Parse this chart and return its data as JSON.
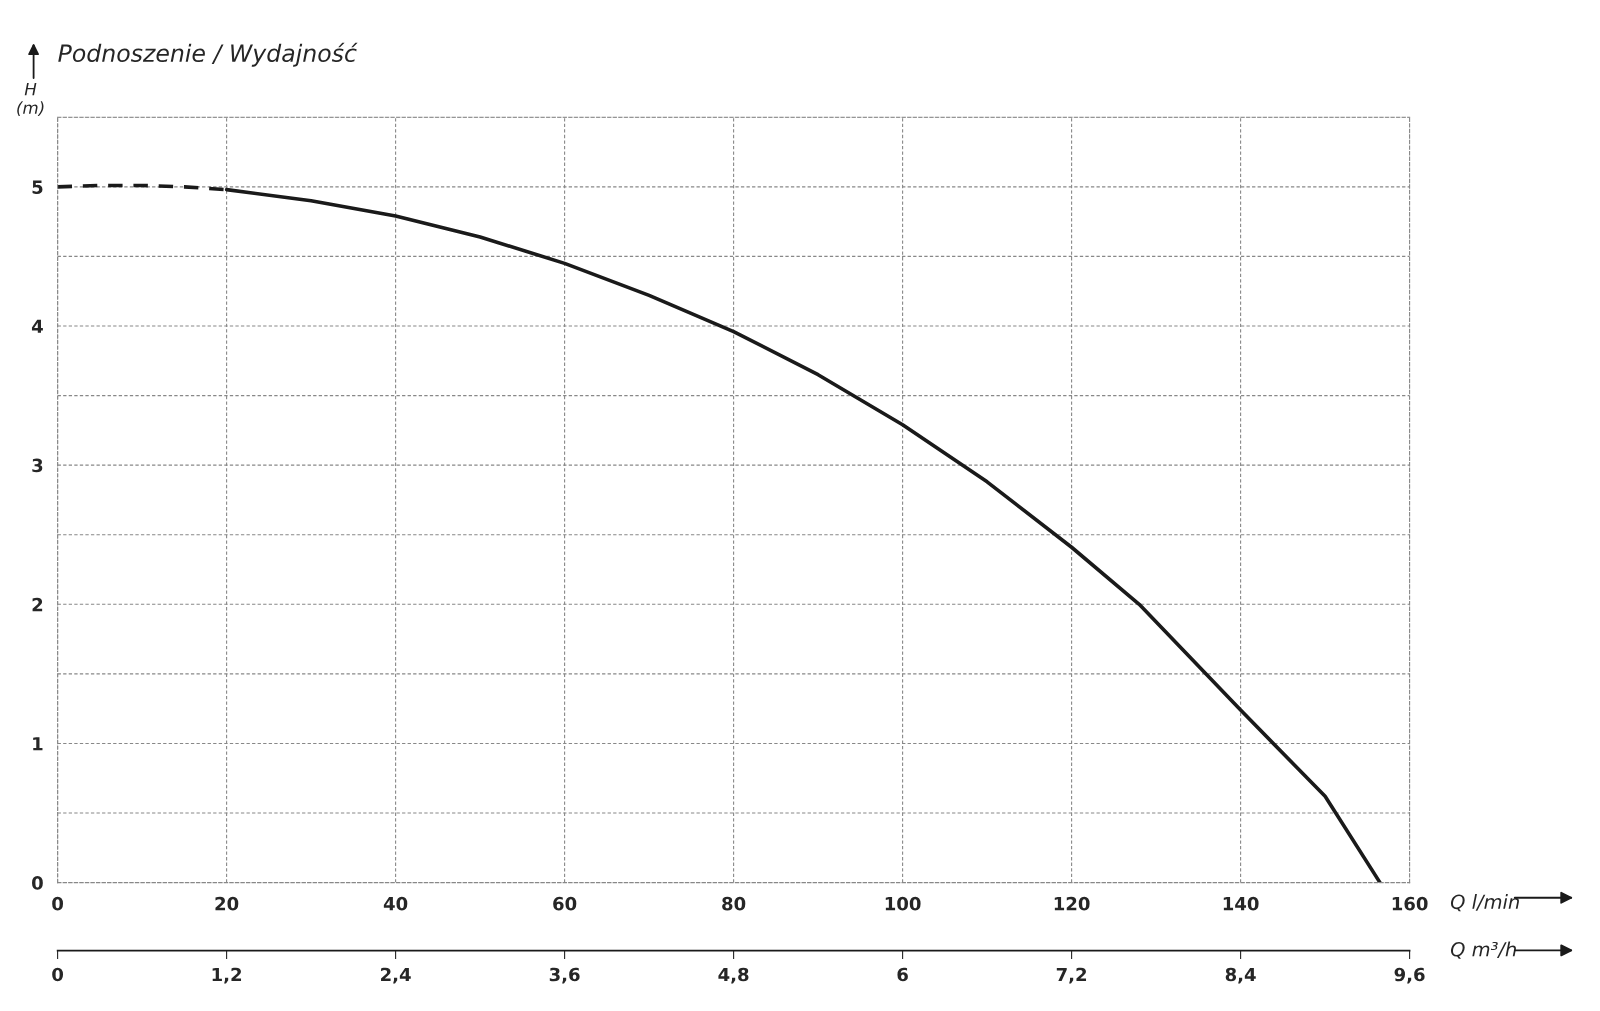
{
  "chart_data": {
    "type": "line",
    "title": "Podnoszenie / Wydajność",
    "ylabel": "H\n(m)",
    "xlabel": "Q l/min",
    "x2label": "Q m³/h",
    "series": [
      {
        "color": "#1a1a1a",
        "line_style": "dashed",
        "x": [
          0,
          5,
          10,
          15,
          20
        ],
        "values": [
          5.0,
          5.01,
          5.01,
          5.0,
          4.98
        ]
      },
      {
        "color": "#1a1a1a",
        "line_style": "solid",
        "x": [
          20,
          30,
          40,
          50,
          60,
          70,
          80,
          90,
          100,
          110,
          120,
          128,
          140,
          150,
          156.5
        ],
        "values": [
          4.98,
          4.9,
          4.79,
          4.64,
          4.45,
          4.22,
          3.96,
          3.65,
          3.29,
          2.88,
          2.41,
          2.0,
          1.24,
          0.62,
          0
        ]
      }
    ],
    "xlim": [
      0,
      160
    ],
    "xticks": [
      0,
      20,
      40,
      60,
      80,
      100,
      120,
      140,
      160
    ],
    "ylim": [
      0,
      5.5
    ],
    "yticks": [
      0,
      {
        "value": 0.5,
        "label": null
      },
      1,
      {
        "value": 1.5,
        "label": null
      },
      2,
      {
        "value": 2.5,
        "label": null
      },
      3,
      {
        "value": 3.5,
        "label": null
      },
      4,
      {
        "value": 4.5,
        "label": null
      },
      5,
      {
        "value": 5.5,
        "label": null
      }
    ],
    "x2lim": [
      0,
      9.6
    ],
    "x2ticks": [
      0,
      {
        "value": 1.2,
        "label": "1,2"
      },
      {
        "value": 2.4,
        "label": "2,4"
      },
      {
        "value": 3.6,
        "label": "3,6"
      },
      {
        "value": 4.8,
        "label": "4,8"
      },
      6,
      {
        "value": 7.2,
        "label": "7,2"
      },
      {
        "value": 8.4,
        "label": "8,4"
      },
      {
        "value": 9.6,
        "label": "9,6"
      }
    ],
    "grid": true,
    "marker": "none"
  }
}
